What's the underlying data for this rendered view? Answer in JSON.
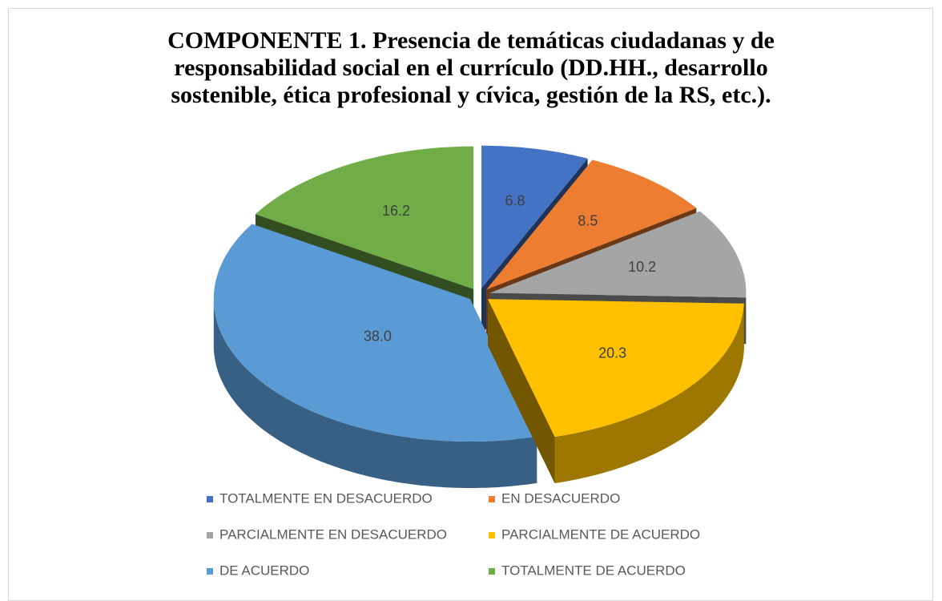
{
  "chart_data": {
    "type": "pie3d",
    "title": "COMPONENTE 1. Presencia de temáticas ciudadanas y de responsabilidad social en el currículo (DD.HH., desarrollo sostenible, ética profesional y cívica, gestión de la RS, etc.).",
    "categories": [
      "TOTALMENTE EN DESACUERDO",
      "EN DESACUERDO",
      "PARCIALMENTE EN DESACUERDO",
      "PARCIALMENTE DE ACUERDO",
      "DE ACUERDO",
      "TOTALMENTE DE ACUERDO"
    ],
    "values": [
      6.8,
      8.5,
      10.2,
      20.3,
      38.0,
      16.2
    ],
    "value_labels": [
      "6.8",
      "8.5",
      "10.2",
      "20.3",
      "38.0",
      "16.2"
    ],
    "colors": [
      "#4472c4",
      "#ed7d31",
      "#a5a5a5",
      "#ffc000",
      "#5b9bd5",
      "#70ad47"
    ],
    "legend": "bottom"
  }
}
